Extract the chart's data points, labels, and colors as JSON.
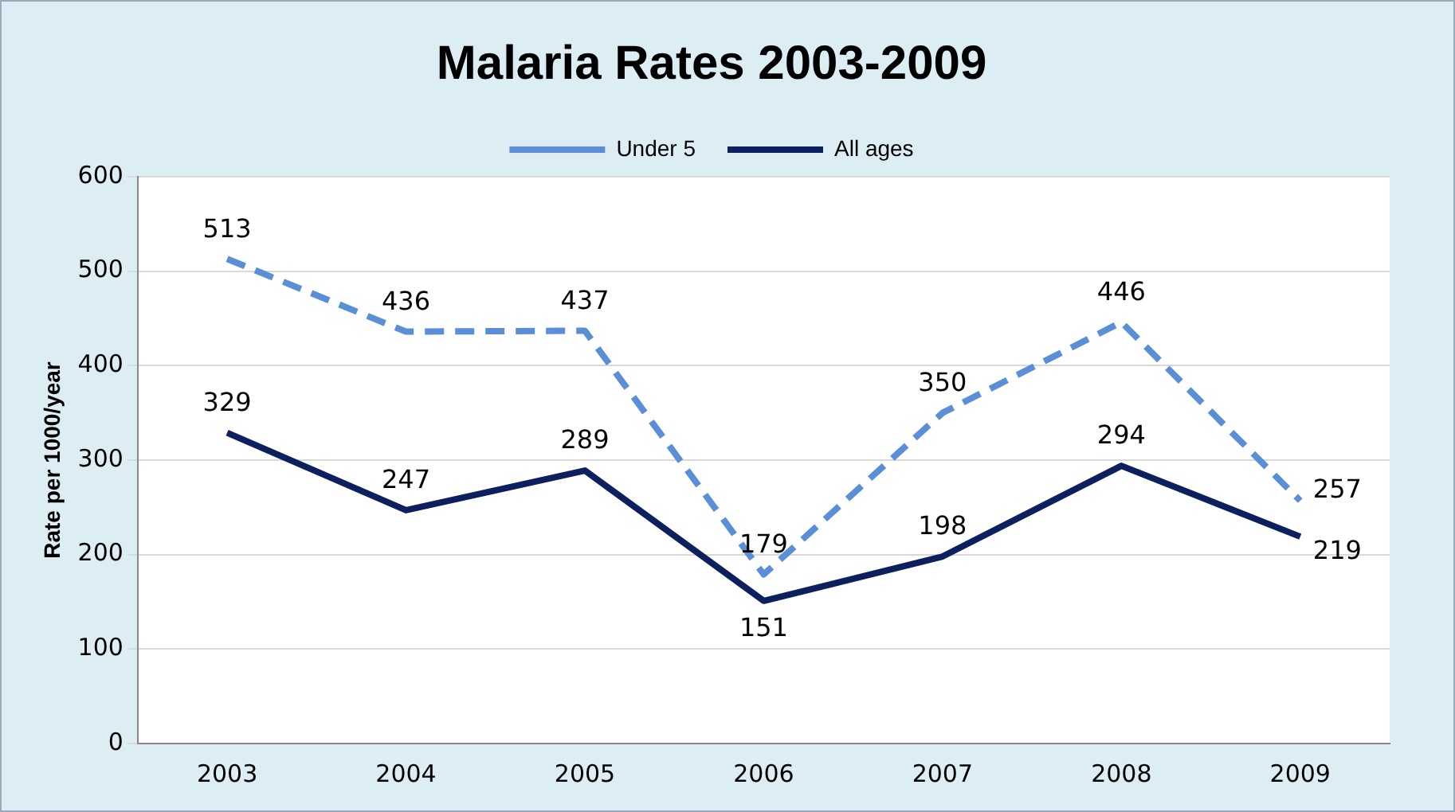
{
  "chart_data": {
    "type": "line",
    "title": "Malaria Rates 2003-2009",
    "ylabel": "Rate per 1000/year",
    "categories": [
      "2003",
      "2004",
      "2005",
      "2006",
      "2007",
      "2008",
      "2009"
    ],
    "series": [
      {
        "name": "Under 5",
        "color": "#5a8fd8",
        "line_style": "dashed",
        "values": [
          513,
          436,
          437,
          179,
          350,
          446,
          257
        ]
      },
      {
        "name": "All ages",
        "color": "#0c1f5e",
        "line_style": "solid",
        "values": [
          329,
          247,
          289,
          151,
          198,
          294,
          219
        ]
      }
    ],
    "ylim": [
      0,
      600
    ],
    "yticks": [
      0,
      100,
      200,
      300,
      400,
      500,
      600
    ],
    "grid": "y",
    "legend": "top",
    "marker": "none",
    "data_labels": true
  }
}
